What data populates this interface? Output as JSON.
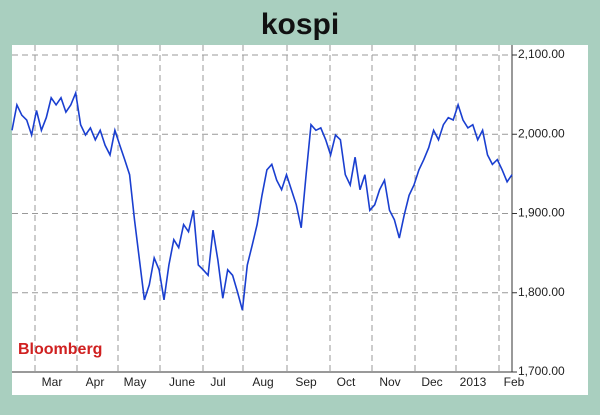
{
  "chart_data": {
    "type": "line",
    "title": "kospi",
    "source": "Bloomberg",
    "x_labels": [
      "Mar",
      "Apr",
      "May",
      "June",
      "Jul",
      "Aug",
      "Sep",
      "Oct",
      "Nov",
      "Dec",
      "2013",
      "Feb"
    ],
    "color": "#1a3fd0",
    "values": [
      2005,
      2037,
      2024,
      2018,
      1999,
      2030,
      2005,
      2021,
      2046,
      2037,
      2046,
      2028,
      2037,
      2052,
      2012,
      1999,
      2008,
      1993,
      2005,
      1986,
      1974,
      2005,
      1986,
      1968,
      1949,
      1892,
      1841,
      1791,
      1810,
      1844,
      1829,
      1791,
      1835,
      1867,
      1857,
      1886,
      1877,
      1904,
      1835,
      1829,
      1822,
      1879,
      1841,
      1793,
      1829,
      1822,
      1801,
      1778,
      1835,
      1860,
      1886,
      1923,
      1955,
      1962,
      1942,
      1930,
      1949,
      1930,
      1911,
      1882,
      1949,
      2012,
      2005,
      2008,
      1993,
      1974,
      1999,
      1993,
      1949,
      1936,
      1971,
      1930,
      1949,
      1904,
      1911,
      1930,
      1942,
      1904,
      1892,
      1869,
      1898,
      1923,
      1936,
      1955,
      1968,
      1983,
      2005,
      1993,
      2012,
      2021,
      2018,
      2037,
      2018,
      2008,
      2012,
      1993,
      2005,
      1974,
      1962,
      1968,
      1955,
      1940,
      1949
    ],
    "ylim": [
      1700,
      2100
    ],
    "yticks": [
      {
        "value": 1700,
        "label": "1,700.00"
      },
      {
        "value": 1800,
        "label": "1,800.00"
      },
      {
        "value": 1900,
        "label": "1,900.00"
      },
      {
        "value": 2000,
        "label": "2,000.00"
      },
      {
        "value": 2100,
        "label": "2,100.00"
      }
    ],
    "grid": true
  }
}
